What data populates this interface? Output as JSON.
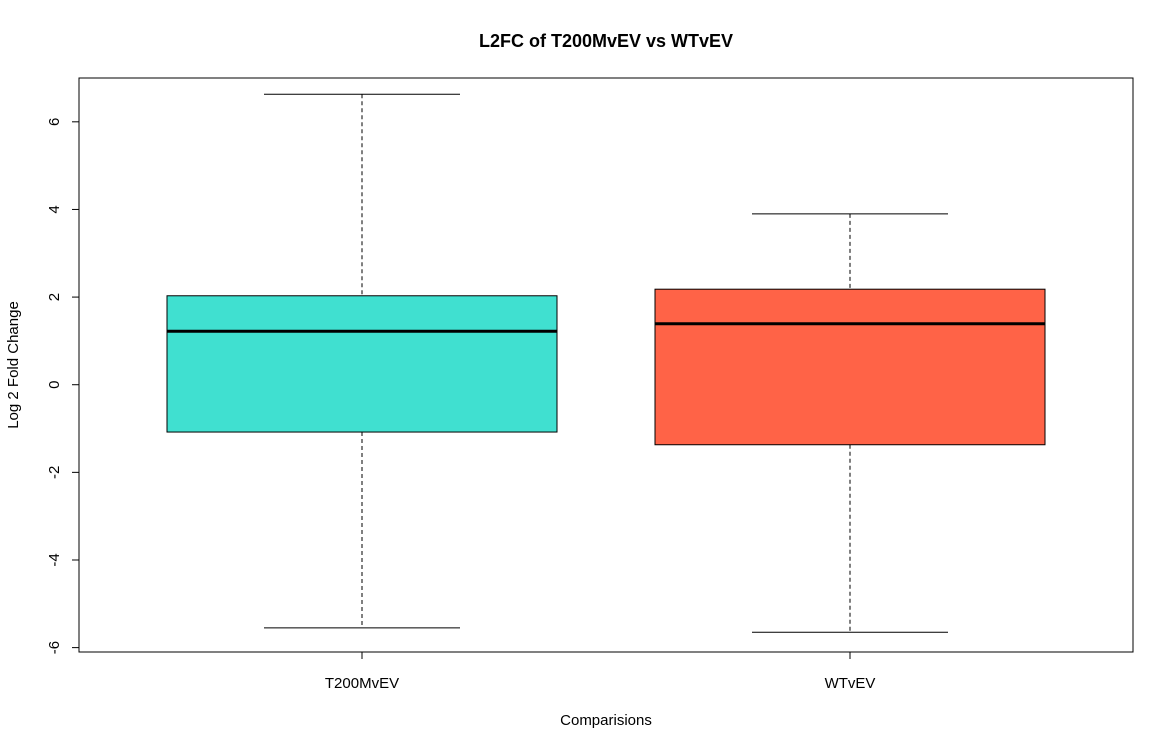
{
  "chart_data": {
    "type": "boxplot",
    "title": "L2FC of T200MvEV vs WTvEV",
    "xlabel": "Comparisions",
    "ylabel": "Log 2 Fold Change",
    "ylim": [
      -6.1,
      7.0
    ],
    "yticks": [
      -6,
      -4,
      -2,
      0,
      2,
      4,
      6
    ],
    "yticklabels": [
      "-6",
      "-4",
      "-2",
      "0",
      "2",
      "4",
      "6"
    ],
    "grid": false,
    "categories": [
      "T200MvEV",
      "WTvEV"
    ],
    "boxes": [
      {
        "label": "T200MvEV",
        "min": -5.55,
        "q1": -1.08,
        "median": 1.22,
        "q3": 2.03,
        "max": 6.63,
        "color": "#40E0D0"
      },
      {
        "label": "WTvEV",
        "min": -5.65,
        "q1": -1.37,
        "median": 1.39,
        "q3": 2.18,
        "max": 3.9,
        "color": "#FF6347"
      }
    ]
  }
}
